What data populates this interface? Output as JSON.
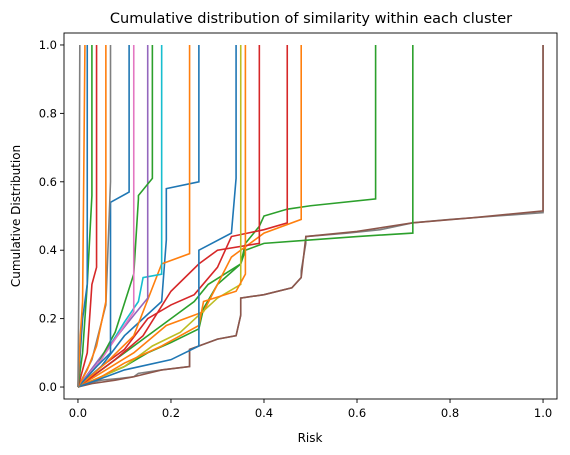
{
  "chart_data": {
    "type": "line",
    "title": "Cumulative distribution of similarity within each cluster",
    "xlabel": "Risk",
    "ylabel": "Cumulative Distribution",
    "xlim": [
      -0.03,
      1.03
    ],
    "ylim": [
      -0.035,
      1.035
    ],
    "xticks": [
      0.0,
      0.2,
      0.4,
      0.6,
      0.8,
      1.0
    ],
    "xtick_labels": [
      "0.0",
      "0.2",
      "0.4",
      "0.6",
      "0.8",
      "1.0"
    ],
    "yticks": [
      0.0,
      0.2,
      0.4,
      0.6,
      0.8,
      1.0
    ],
    "ytick_labels": [
      "0.0",
      "0.2",
      "0.4",
      "0.6",
      "0.8",
      "1.0"
    ],
    "grid": false,
    "legend": "none",
    "colors": {
      "blue": "#1f77b4",
      "orange": "#ff7f0e",
      "green": "#2ca02c",
      "red": "#d62728",
      "purple": "#9467bd",
      "brown": "#8c564b",
      "pink": "#e377c2",
      "gray": "#7f7f7f",
      "olive": "#bcbd22",
      "cyan": "#17becf"
    },
    "series": [
      {
        "color": "#7f7f7f",
        "points": [
          [
            0.0,
            0.0
          ],
          [
            0.02,
            0.01
          ],
          [
            0.05,
            0.02
          ],
          [
            0.09,
            0.025
          ],
          [
            0.12,
            0.03
          ],
          [
            0.13,
            0.04
          ],
          [
            0.18,
            0.05
          ],
          [
            0.24,
            0.06
          ],
          [
            0.24,
            0.11
          ],
          [
            0.3,
            0.14
          ],
          [
            0.34,
            0.15
          ],
          [
            0.35,
            0.21
          ],
          [
            0.35,
            0.26
          ],
          [
            0.4,
            0.27
          ],
          [
            0.46,
            0.29
          ],
          [
            0.48,
            0.32
          ],
          [
            0.48,
            0.34
          ],
          [
            0.49,
            0.42
          ],
          [
            0.49,
            0.44
          ],
          [
            0.58,
            0.45
          ],
          [
            0.65,
            0.46
          ],
          [
            0.72,
            0.48
          ],
          [
            0.72,
            0.48
          ],
          [
            0.8,
            0.49
          ],
          [
            0.9,
            0.5
          ],
          [
            1.0,
            0.51
          ],
          [
            1.0,
            1.0
          ]
        ]
      },
      {
        "color": "#8c564b",
        "points": [
          [
            0.0,
            0.0
          ],
          [
            0.03,
            0.01
          ],
          [
            0.08,
            0.02
          ],
          [
            0.12,
            0.03
          ],
          [
            0.18,
            0.05
          ],
          [
            0.24,
            0.06
          ],
          [
            0.24,
            0.11
          ],
          [
            0.3,
            0.14
          ],
          [
            0.34,
            0.15
          ],
          [
            0.35,
            0.21
          ],
          [
            0.35,
            0.26
          ],
          [
            0.4,
            0.27
          ],
          [
            0.46,
            0.29
          ],
          [
            0.48,
            0.32
          ],
          [
            0.49,
            0.44
          ],
          [
            0.6,
            0.455
          ],
          [
            0.72,
            0.48
          ],
          [
            0.85,
            0.495
          ],
          [
            1.0,
            0.515
          ],
          [
            1.0,
            1.0
          ]
        ]
      },
      {
        "color": "#2ca02c",
        "points": [
          [
            0.0,
            0.0
          ],
          [
            0.05,
            0.03
          ],
          [
            0.1,
            0.06
          ],
          [
            0.15,
            0.1
          ],
          [
            0.2,
            0.13
          ],
          [
            0.26,
            0.17
          ],
          [
            0.27,
            0.23
          ],
          [
            0.3,
            0.3
          ],
          [
            0.35,
            0.36
          ],
          [
            0.36,
            0.4
          ],
          [
            0.4,
            0.42
          ],
          [
            0.5,
            0.43
          ],
          [
            0.6,
            0.44
          ],
          [
            0.72,
            0.45
          ],
          [
            0.72,
            1.0
          ]
        ]
      },
      {
        "color": "#2ca02c",
        "points": [
          [
            0.0,
            0.0
          ],
          [
            0.05,
            0.05
          ],
          [
            0.1,
            0.1
          ],
          [
            0.2,
            0.2
          ],
          [
            0.25,
            0.25
          ],
          [
            0.28,
            0.3
          ],
          [
            0.35,
            0.36
          ],
          [
            0.36,
            0.42
          ],
          [
            0.39,
            0.47
          ],
          [
            0.4,
            0.5
          ],
          [
            0.45,
            0.52
          ],
          [
            0.5,
            0.53
          ],
          [
            0.64,
            0.55
          ],
          [
            0.64,
            1.0
          ]
        ]
      },
      {
        "color": "#d62728",
        "points": [
          [
            0.0,
            0.0
          ],
          [
            0.05,
            0.06
          ],
          [
            0.1,
            0.11
          ],
          [
            0.15,
            0.2
          ],
          [
            0.2,
            0.24
          ],
          [
            0.25,
            0.27
          ],
          [
            0.3,
            0.35
          ],
          [
            0.33,
            0.44
          ],
          [
            0.4,
            0.46
          ],
          [
            0.45,
            0.48
          ],
          [
            0.45,
            1.0
          ]
        ]
      },
      {
        "color": "#ff7f0e",
        "points": [
          [
            0.0,
            0.0
          ],
          [
            0.06,
            0.05
          ],
          [
            0.12,
            0.1
          ],
          [
            0.19,
            0.18
          ],
          [
            0.27,
            0.22
          ],
          [
            0.3,
            0.3
          ],
          [
            0.33,
            0.38
          ],
          [
            0.4,
            0.45
          ],
          [
            0.48,
            0.49
          ],
          [
            0.48,
            1.0
          ]
        ]
      },
      {
        "color": "#d62728",
        "points": [
          [
            0.0,
            0.0
          ],
          [
            0.04,
            0.04
          ],
          [
            0.08,
            0.08
          ],
          [
            0.14,
            0.15
          ],
          [
            0.2,
            0.28
          ],
          [
            0.26,
            0.36
          ],
          [
            0.3,
            0.4
          ],
          [
            0.39,
            0.42
          ],
          [
            0.39,
            1.0
          ]
        ]
      },
      {
        "color": "#bcbd22",
        "points": [
          [
            0.0,
            0.0
          ],
          [
            0.05,
            0.03
          ],
          [
            0.1,
            0.06
          ],
          [
            0.16,
            0.12
          ],
          [
            0.22,
            0.16
          ],
          [
            0.26,
            0.21
          ],
          [
            0.3,
            0.26
          ],
          [
            0.35,
            0.3
          ],
          [
            0.35,
            1.0
          ]
        ]
      },
      {
        "color": "#ff7f0e",
        "points": [
          [
            0.0,
            0.0
          ],
          [
            0.05,
            0.03
          ],
          [
            0.1,
            0.07
          ],
          [
            0.18,
            0.12
          ],
          [
            0.26,
            0.18
          ],
          [
            0.27,
            0.25
          ],
          [
            0.34,
            0.28
          ],
          [
            0.36,
            0.33
          ],
          [
            0.36,
            1.0
          ]
        ]
      },
      {
        "color": "#1f77b4",
        "points": [
          [
            0.0,
            0.0
          ],
          [
            0.04,
            0.02
          ],
          [
            0.1,
            0.05
          ],
          [
            0.2,
            0.08
          ],
          [
            0.26,
            0.12
          ],
          [
            0.26,
            0.4
          ],
          [
            0.33,
            0.45
          ],
          [
            0.34,
            0.61
          ],
          [
            0.34,
            1.0
          ]
        ]
      },
      {
        "color": "#1f77b4",
        "points": [
          [
            0.0,
            0.0
          ],
          [
            0.05,
            0.06
          ],
          [
            0.1,
            0.15
          ],
          [
            0.18,
            0.25
          ],
          [
            0.19,
            0.43
          ],
          [
            0.19,
            0.58
          ],
          [
            0.26,
            0.6
          ],
          [
            0.26,
            1.0
          ]
        ]
      },
      {
        "color": "#ff7f0e",
        "points": [
          [
            0.0,
            0.0
          ],
          [
            0.06,
            0.07
          ],
          [
            0.12,
            0.15
          ],
          [
            0.18,
            0.36
          ],
          [
            0.24,
            0.39
          ],
          [
            0.24,
            1.0
          ]
        ]
      },
      {
        "color": "#17becf",
        "points": [
          [
            0.0,
            0.0
          ],
          [
            0.05,
            0.08
          ],
          [
            0.1,
            0.19
          ],
          [
            0.13,
            0.25
          ],
          [
            0.14,
            0.32
          ],
          [
            0.18,
            0.33
          ],
          [
            0.18,
            1.0
          ]
        ]
      },
      {
        "color": "#9467bd",
        "points": [
          [
            0.0,
            0.0
          ],
          [
            0.05,
            0.09
          ],
          [
            0.12,
            0.21
          ],
          [
            0.15,
            0.26
          ],
          [
            0.15,
            1.0
          ]
        ]
      },
      {
        "color": "#2ca02c",
        "points": [
          [
            0.0,
            0.0
          ],
          [
            0.04,
            0.06
          ],
          [
            0.08,
            0.16
          ],
          [
            0.12,
            0.33
          ],
          [
            0.13,
            0.55
          ],
          [
            0.13,
            0.56
          ],
          [
            0.16,
            0.61
          ],
          [
            0.16,
            1.0
          ]
        ]
      },
      {
        "color": "#e377c2",
        "points": [
          [
            0.0,
            0.0
          ],
          [
            0.05,
            0.08
          ],
          [
            0.09,
            0.16
          ],
          [
            0.12,
            0.22
          ],
          [
            0.12,
            0.28
          ],
          [
            0.12,
            1.0
          ]
        ]
      },
      {
        "color": "#1f77b4",
        "points": [
          [
            0.0,
            0.0
          ],
          [
            0.04,
            0.06
          ],
          [
            0.07,
            0.1
          ],
          [
            0.07,
            0.54
          ],
          [
            0.11,
            0.57
          ],
          [
            0.11,
            1.0
          ]
        ]
      },
      {
        "color": "#7f7f7f",
        "points": [
          [
            0.0,
            0.0
          ],
          [
            0.03,
            0.08
          ],
          [
            0.06,
            0.24
          ],
          [
            0.07,
            0.6
          ],
          [
            0.07,
            1.0
          ]
        ]
      },
      {
        "color": "#ff7f0e",
        "points": [
          [
            0.0,
            0.0
          ],
          [
            0.02,
            0.05
          ],
          [
            0.04,
            0.12
          ],
          [
            0.06,
            0.25
          ],
          [
            0.06,
            1.0
          ]
        ]
      },
      {
        "color": "#d62728",
        "points": [
          [
            0.0,
            0.0
          ],
          [
            0.02,
            0.1
          ],
          [
            0.03,
            0.3
          ],
          [
            0.04,
            0.35
          ],
          [
            0.04,
            1.0
          ]
        ]
      },
      {
        "color": "#2ca02c",
        "points": [
          [
            0.0,
            0.0
          ],
          [
            0.01,
            0.1
          ],
          [
            0.02,
            0.3
          ],
          [
            0.03,
            0.56
          ],
          [
            0.03,
            1.0
          ]
        ]
      },
      {
        "color": "#1f77b4",
        "points": [
          [
            0.0,
            0.0
          ],
          [
            0.01,
            0.2
          ],
          [
            0.02,
            0.3
          ],
          [
            0.02,
            1.0
          ]
        ]
      },
      {
        "color": "#ff7f0e",
        "points": [
          [
            0.0,
            0.0
          ],
          [
            0.005,
            0.15
          ],
          [
            0.01,
            0.25
          ],
          [
            0.015,
            1.0
          ]
        ]
      },
      {
        "color": "#7f7f7f",
        "points": [
          [
            0.0,
            0.0
          ],
          [
            0.002,
            0.3
          ],
          [
            0.004,
            1.0
          ]
        ]
      }
    ]
  }
}
